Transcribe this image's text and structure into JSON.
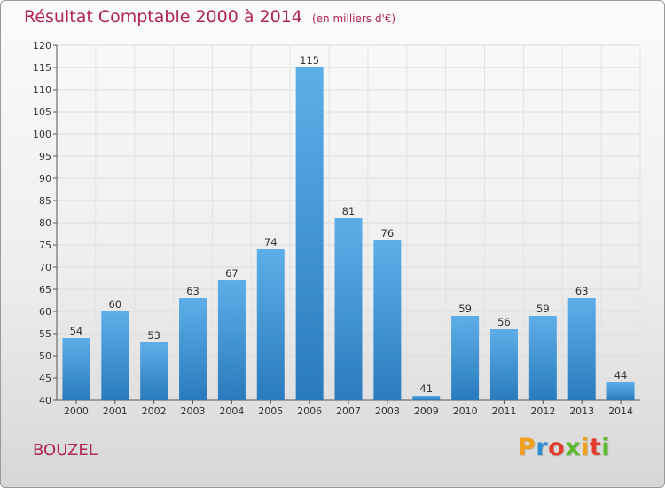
{
  "title": "Résultat Comptable 2000 à 2014",
  "subtitle": "(en milliers d'€)",
  "commune": "BOUZEL",
  "logo": {
    "letters": [
      "P",
      "r",
      "o",
      "x",
      "i",
      "t",
      "i"
    ],
    "colors": [
      "#f0a01e",
      "#2f8fd6",
      "#e33b2e",
      "#5cb82d",
      "#f0a01e",
      "#e33b2e",
      "#5cb82d"
    ]
  },
  "colors": {
    "bar_top": "#5daee8",
    "bar_bottom": "#2a7bbd",
    "title": "#b0264f"
  },
  "chart_data": {
    "type": "bar",
    "categories": [
      "2000",
      "2001",
      "2002",
      "2003",
      "2004",
      "2005",
      "2006",
      "2007",
      "2008",
      "2009",
      "2010",
      "2011",
      "2012",
      "2013",
      "2014"
    ],
    "values": [
      54,
      60,
      53,
      63,
      67,
      74,
      115,
      81,
      76,
      41,
      59,
      56,
      59,
      63,
      44
    ],
    "ylim": [
      40,
      120
    ],
    "yticks": [
      40,
      45,
      50,
      55,
      60,
      65,
      70,
      75,
      80,
      85,
      90,
      95,
      100,
      105,
      110,
      115,
      120
    ],
    "grid": true,
    "data_labels": true
  }
}
